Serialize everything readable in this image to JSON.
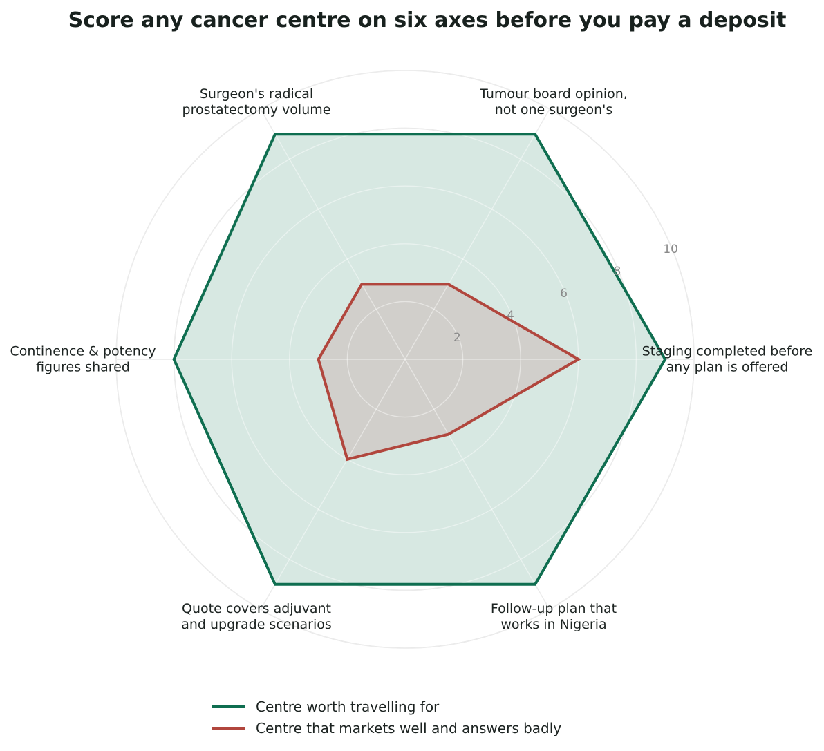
{
  "chart_data": {
    "type": "radar",
    "title": "Score any cancer centre on six axes before you pay a deposit",
    "axes": [
      [
        "Staging completed before",
        "any plan is offered"
      ],
      [
        "Tumour board opinion,",
        "not one surgeon's"
      ],
      [
        "Surgeon's radical",
        "prostatectomy volume"
      ],
      [
        "Continence & potency",
        "figures shared"
      ],
      [
        "Quote covers adjuvant",
        "and upgrade scenarios"
      ],
      [
        "Follow-up plan that",
        "works in Nigeria"
      ]
    ],
    "rlim": [
      0,
      10
    ],
    "r_ticks": [
      "2",
      "4",
      "6",
      "8",
      "10"
    ],
    "r_tick_values": [
      2,
      4,
      6,
      8,
      10
    ],
    "grid": true,
    "legend_position": "bottom",
    "series": [
      {
        "name": "Centre worth travelling for",
        "color": "#0f6e50",
        "fill": "#d7e8e2",
        "values": [
          9,
          9,
          9,
          8,
          9,
          9
        ]
      },
      {
        "name": "Centre that markets well and answers badly",
        "color": "#b1463d",
        "fill": "#d0cac7",
        "values": [
          6,
          3,
          3,
          3,
          4,
          3
        ]
      }
    ]
  }
}
